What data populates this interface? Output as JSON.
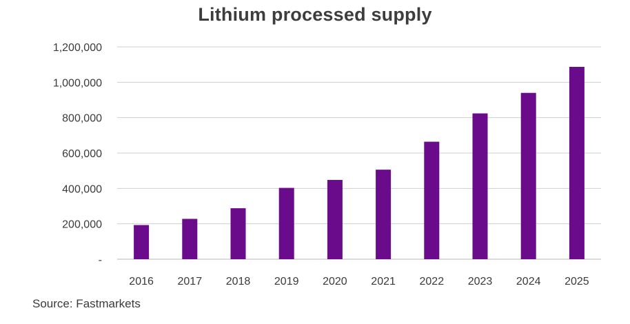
{
  "chart_data": {
    "type": "bar",
    "title": "Lithium processed supply",
    "xlabel": "",
    "ylabel": "",
    "categories": [
      "2016",
      "2017",
      "2018",
      "2019",
      "2020",
      "2021",
      "2022",
      "2023",
      "2024",
      "2025"
    ],
    "values": [
      193000,
      228000,
      288000,
      403000,
      448000,
      506000,
      664000,
      824000,
      940000,
      1087000
    ],
    "ylim": [
      0,
      1200000
    ],
    "yticks": [
      0,
      200000,
      400000,
      600000,
      800000,
      1000000,
      1200000
    ],
    "ytick_labels": [
      "-",
      "200,000",
      "400,000",
      "600,000",
      "800,000",
      "1,000,000",
      "1,200,000"
    ],
    "grid": true,
    "legend": "none",
    "bar_color": "#6a0b8c",
    "grid_color": "#cfcfcf",
    "source": "Source: Fastmarkets"
  }
}
